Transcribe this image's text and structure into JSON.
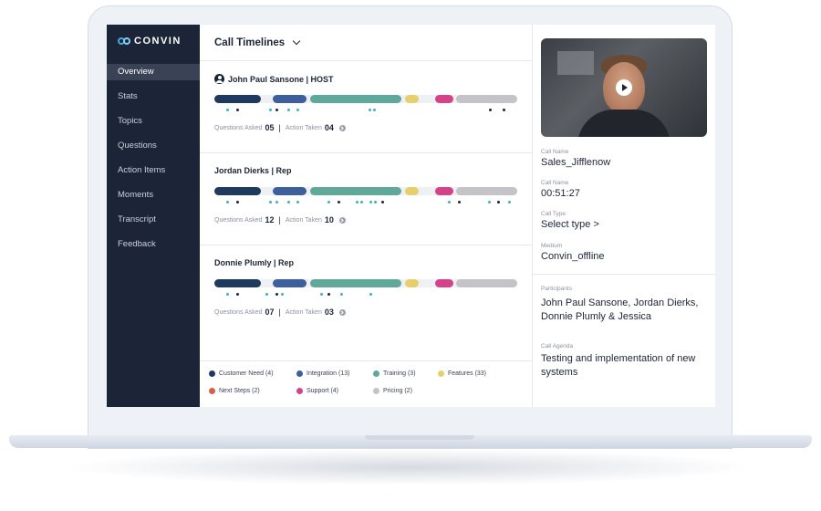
{
  "brand": {
    "name": "CONVIN"
  },
  "sidebar": {
    "items": [
      {
        "label": "Overview",
        "active": true
      },
      {
        "label": "Stats"
      },
      {
        "label": "Topics"
      },
      {
        "label": "Questions"
      },
      {
        "label": "Action Items"
      },
      {
        "label": "Moments"
      },
      {
        "label": "Transcript"
      },
      {
        "label": "Feedback"
      }
    ]
  },
  "main": {
    "title": "Call Timelines",
    "people": [
      {
        "name": "John Paul Sansone | HOST",
        "questions_label": "Questions Asked",
        "questions": "05",
        "actions_label": "Action Taken",
        "actions": "04"
      },
      {
        "name": "Jordan Dierks | Rep",
        "questions_label": "Questions Asked",
        "questions": "12",
        "actions_label": "Action Taken",
        "actions": "10"
      },
      {
        "name": "Donnie Plumly | Rep",
        "questions_label": "Questions Asked",
        "questions": "07",
        "actions_label": "Action Taken",
        "actions": "03"
      }
    ],
    "legend": [
      {
        "label": "Customer Need (4)",
        "color": "#1f3a5f"
      },
      {
        "label": "Integration (13)",
        "color": "#3d5f9b"
      },
      {
        "label": "Training (3)",
        "color": "#5fa89a"
      },
      {
        "label": "Features (33)",
        "color": "#e8cf6e"
      },
      {
        "label": "Next Steps (2)",
        "color": "#d4604a"
      },
      {
        "label": "Support (4)",
        "color": "#d6428a"
      },
      {
        "label": "Pricing (2)",
        "color": "#c4c4c8"
      }
    ]
  },
  "details": {
    "call_name_label": "Call Name",
    "call_name": "Sales_Jifflenow",
    "duration_label": "Call Name",
    "duration": "00:51:27",
    "call_type_label": "Call Type",
    "call_type": "Select type >",
    "medium_label": "Medium",
    "medium": "Convin_offline",
    "participants_label": "Participants",
    "participants": "John Paul Sansone, Jordan Dierks, Donnie Plumly & Jessica",
    "agenda_label": "Call Agenda",
    "agenda": "Testing and implementation of new systems"
  },
  "colors": {
    "sidebar_bg": "#1c2438",
    "teal_dot": "#3bb3c3",
    "dark_dot": "#1c2438"
  }
}
